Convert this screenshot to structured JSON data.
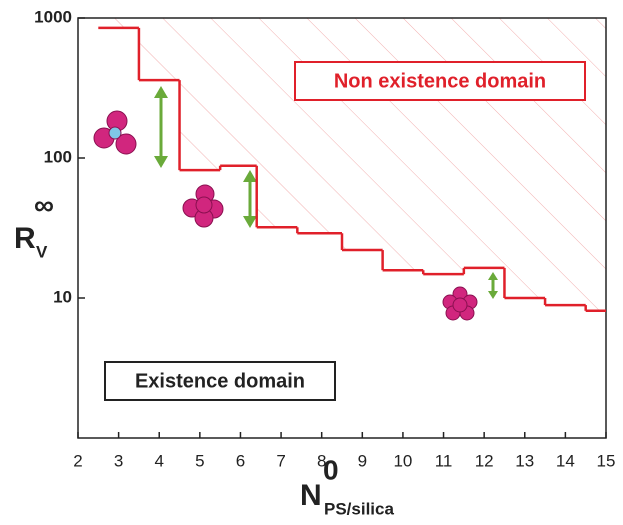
{
  "chart_data": {
    "type": "step",
    "x": [
      2.5,
      3.5,
      4.5,
      5.5,
      6.4,
      7.4,
      8.5,
      9.5,
      10.5,
      11.5,
      12.5,
      13.5,
      14.5
    ],
    "values": [
      850,
      360,
      82,
      88,
      32,
      29,
      22,
      15.8,
      14.8,
      16.4,
      10,
      8.9,
      8.1
    ],
    "color": "#e0202a",
    "xlim": [
      2,
      15
    ],
    "xticks": [
      2,
      3,
      4,
      5,
      6,
      7,
      8,
      9,
      10,
      11,
      12,
      13,
      14,
      15
    ],
    "ylim": [
      1,
      1000
    ],
    "yticks": [
      1000,
      100,
      10
    ],
    "yscale": "log",
    "xlabel": "N",
    "xlabel_sup": "0",
    "xlabel_sub": "PS/silica",
    "ylabel": "R",
    "ylabel_sup": "∞",
    "ylabel_sub": "V",
    "annotations": [
      "Non existence domain",
      "Existence domain"
    ]
  }
}
